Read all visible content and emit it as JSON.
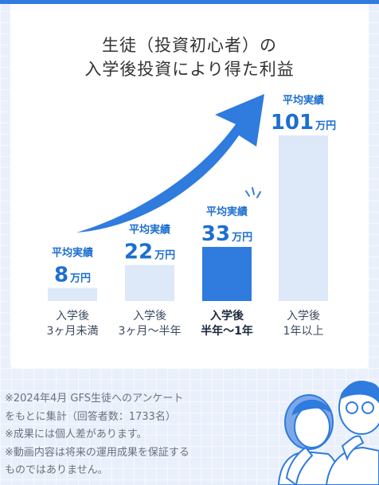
{
  "title": {
    "line1": "生徒（投資初心者）の",
    "line2": "入学後投資により得た利益"
  },
  "bar_prefix": "平均実績",
  "unit": "万円",
  "colors": {
    "accent": "#2f7bde",
    "bar_light": "#dde8f8",
    "bar_highlight": "#2f7bde",
    "label": "#1d6fd0"
  },
  "chart_data": {
    "type": "bar",
    "title": "生徒（投資初心者）の入学後投資により得た利益",
    "unit": "万円",
    "categories": [
      [
        "入学後",
        "3ヶ月未満"
      ],
      [
        "入学後",
        "3ヶ月〜半年"
      ],
      [
        "入学後",
        "半年〜1年"
      ],
      [
        "入学後",
        "1年以上"
      ]
    ],
    "values": [
      8,
      22,
      33,
      101
    ],
    "highlight_index": 2,
    "ylim": [
      0,
      101
    ]
  },
  "notes": [
    "※2024年4月 GFS生徒へのアンケート",
    "をもとに集計（回答者数：1733名）",
    "※成果には個人差があります。",
    "※動画内容は将来の運用成果を保証する",
    "ものではありません。"
  ]
}
